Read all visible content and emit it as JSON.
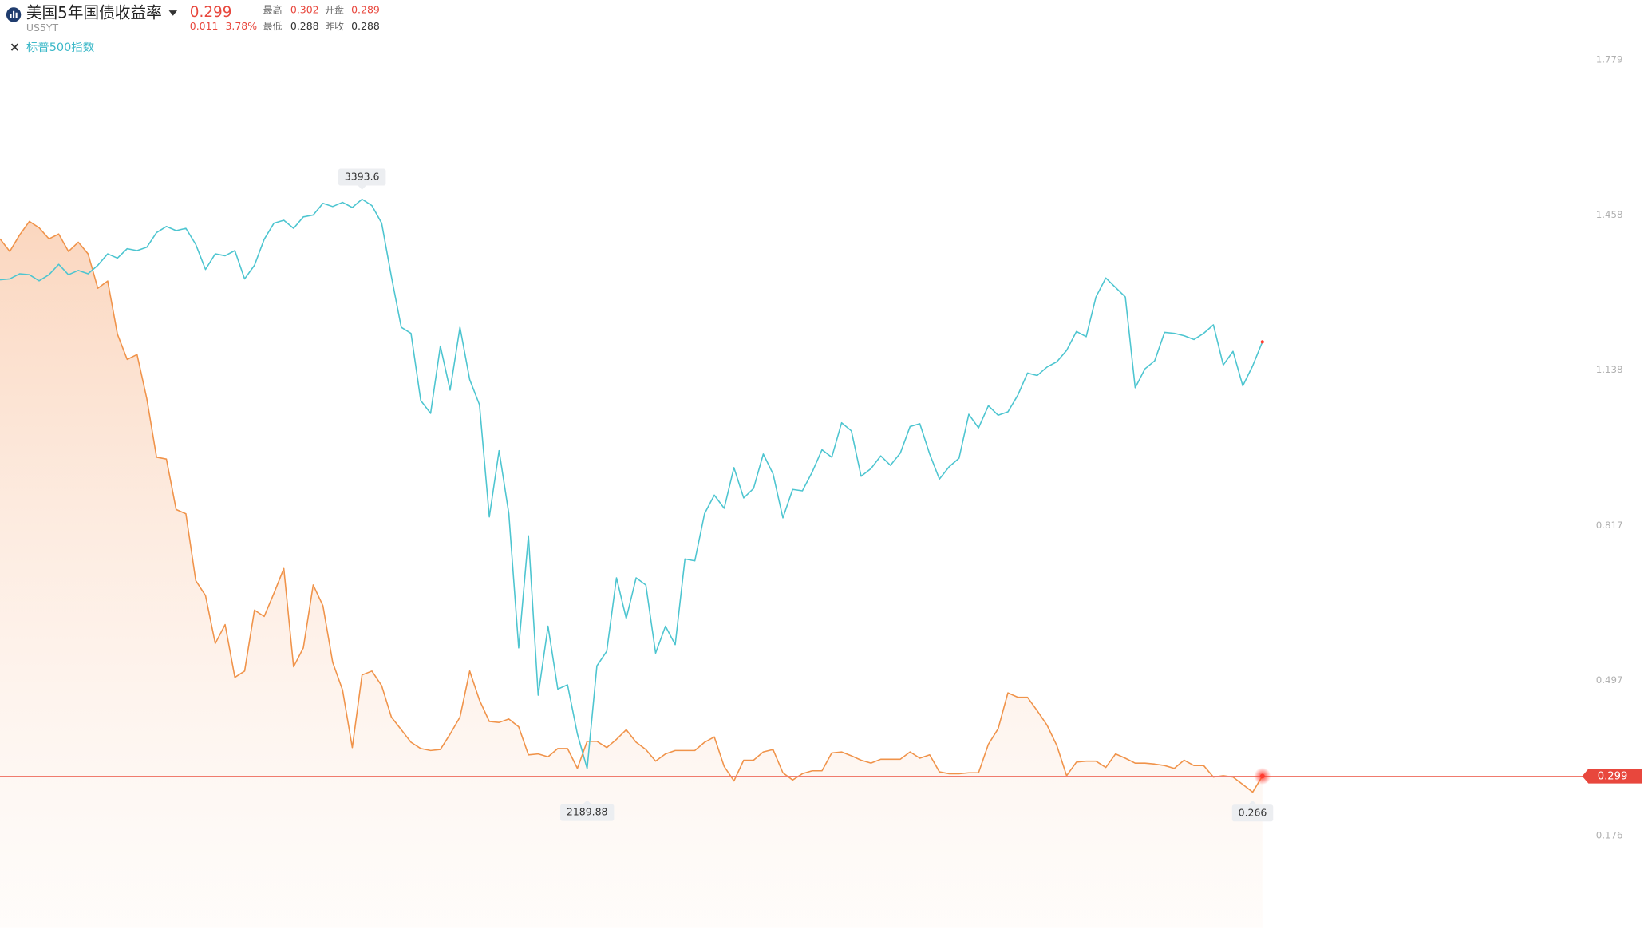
{
  "header": {
    "symbol": "US5YT",
    "price": "0.299",
    "change": "0.011",
    "change_percent": "3.78%",
    "stats": [
      {
        "label": "最高",
        "value": "0.302"
      },
      {
        "label": "开盘",
        "value": "0.289"
      },
      {
        "label": "最低",
        "value": "0.288"
      },
      {
        "label": "昨收",
        "value": "0.288"
      }
    ]
  },
  "chart_data": {
    "type": "line",
    "series": [
      {
        "name": "美国5年国债收益率",
        "color": "#f0934a",
        "area": true,
        "values": [
          1.409,
          1.383,
          1.417,
          1.445,
          1.432,
          1.409,
          1.419,
          1.383,
          1.402,
          1.378,
          1.307,
          1.322,
          1.212,
          1.16,
          1.17,
          1.079,
          0.958,
          0.954,
          0.85,
          0.841,
          0.703,
          0.672,
          0.573,
          0.612,
          0.503,
          0.516,
          0.642,
          0.629,
          0.677,
          0.728,
          0.525,
          0.564,
          0.694,
          0.651,
          0.534,
          0.477,
          0.358,
          0.508,
          0.516,
          0.486,
          0.421,
          0.395,
          0.369,
          0.356,
          0.352,
          0.354,
          0.386,
          0.421,
          0.516,
          0.456,
          0.412,
          0.41,
          0.417,
          0.401,
          0.343,
          0.345,
          0.339,
          0.356,
          0.356,
          0.315,
          0.371,
          0.371,
          0.358,
          0.375,
          0.395,
          0.369,
          0.354,
          0.33,
          0.345,
          0.352,
          0.352,
          0.352,
          0.369,
          0.38,
          0.319,
          0.289,
          0.332,
          0.332,
          0.349,
          0.354,
          0.306,
          0.291,
          0.304,
          0.31,
          0.31,
          0.347,
          0.349,
          0.341,
          0.332,
          0.326,
          0.334,
          0.334,
          0.334,
          0.349,
          0.336,
          0.343,
          0.308,
          0.304,
          0.304,
          0.306,
          0.306,
          0.365,
          0.397,
          0.471,
          0.462,
          0.462,
          0.434,
          0.404,
          0.362,
          0.3,
          0.328,
          0.33,
          0.33,
          0.317,
          0.345,
          0.336,
          0.326,
          0.326,
          0.324,
          0.321,
          0.315,
          0.332,
          0.321,
          0.321,
          0.297,
          0.3,
          0.297,
          0.282,
          0.266,
          0.299
        ]
      },
      {
        "name": "标普500指数",
        "color": "#4dc5d0",
        "axis": "y2",
        "values": [
          3223,
          3225,
          3236,
          3234,
          3221,
          3234,
          3256,
          3234,
          3243,
          3236,
          3254,
          3278,
          3269,
          3289,
          3285,
          3292,
          3323,
          3336,
          3327,
          3332,
          3298,
          3245,
          3278,
          3274,
          3285,
          3225,
          3254,
          3309,
          3343,
          3349,
          3332,
          3356,
          3360,
          3385,
          3378,
          3387,
          3376,
          3393.6,
          3380,
          3343,
          3230,
          3123,
          3110,
          2968,
          2941,
          3083,
          2990,
          3123,
          3012,
          2959,
          2722,
          2862,
          2729,
          2445,
          2682,
          2345,
          2491,
          2358,
          2367,
          2263,
          2189.88,
          2407,
          2438,
          2593,
          2507,
          2593,
          2578,
          2434,
          2491,
          2452,
          2633,
          2629,
          2729,
          2768,
          2740,
          2826,
          2762,
          2782,
          2855,
          2813,
          2720,
          2780,
          2777,
          2817,
          2864,
          2848,
          2921,
          2904,
          2808,
          2824,
          2851,
          2831,
          2857,
          2913,
          2919,
          2855,
          2802,
          2828,
          2846,
          2939,
          2910,
          2957,
          2937,
          2944,
          2979,
          3026,
          3021,
          3039,
          3050,
          3074,
          3114,
          3103,
          3187,
          3227,
          3207,
          3187,
          2995,
          3035,
          3052,
          3112,
          3110,
          3105,
          3097,
          3110,
          3128,
          3043,
          3072,
          2999,
          3041,
          3092
        ]
      }
    ],
    "ylim": [
      0.176,
      1.779
    ],
    "yticks": [
      0.176,
      0.497,
      0.817,
      1.138,
      1.458,
      1.779
    ],
    "y2lim": [
      2048.0,
      3688.4
    ]
  }
}
